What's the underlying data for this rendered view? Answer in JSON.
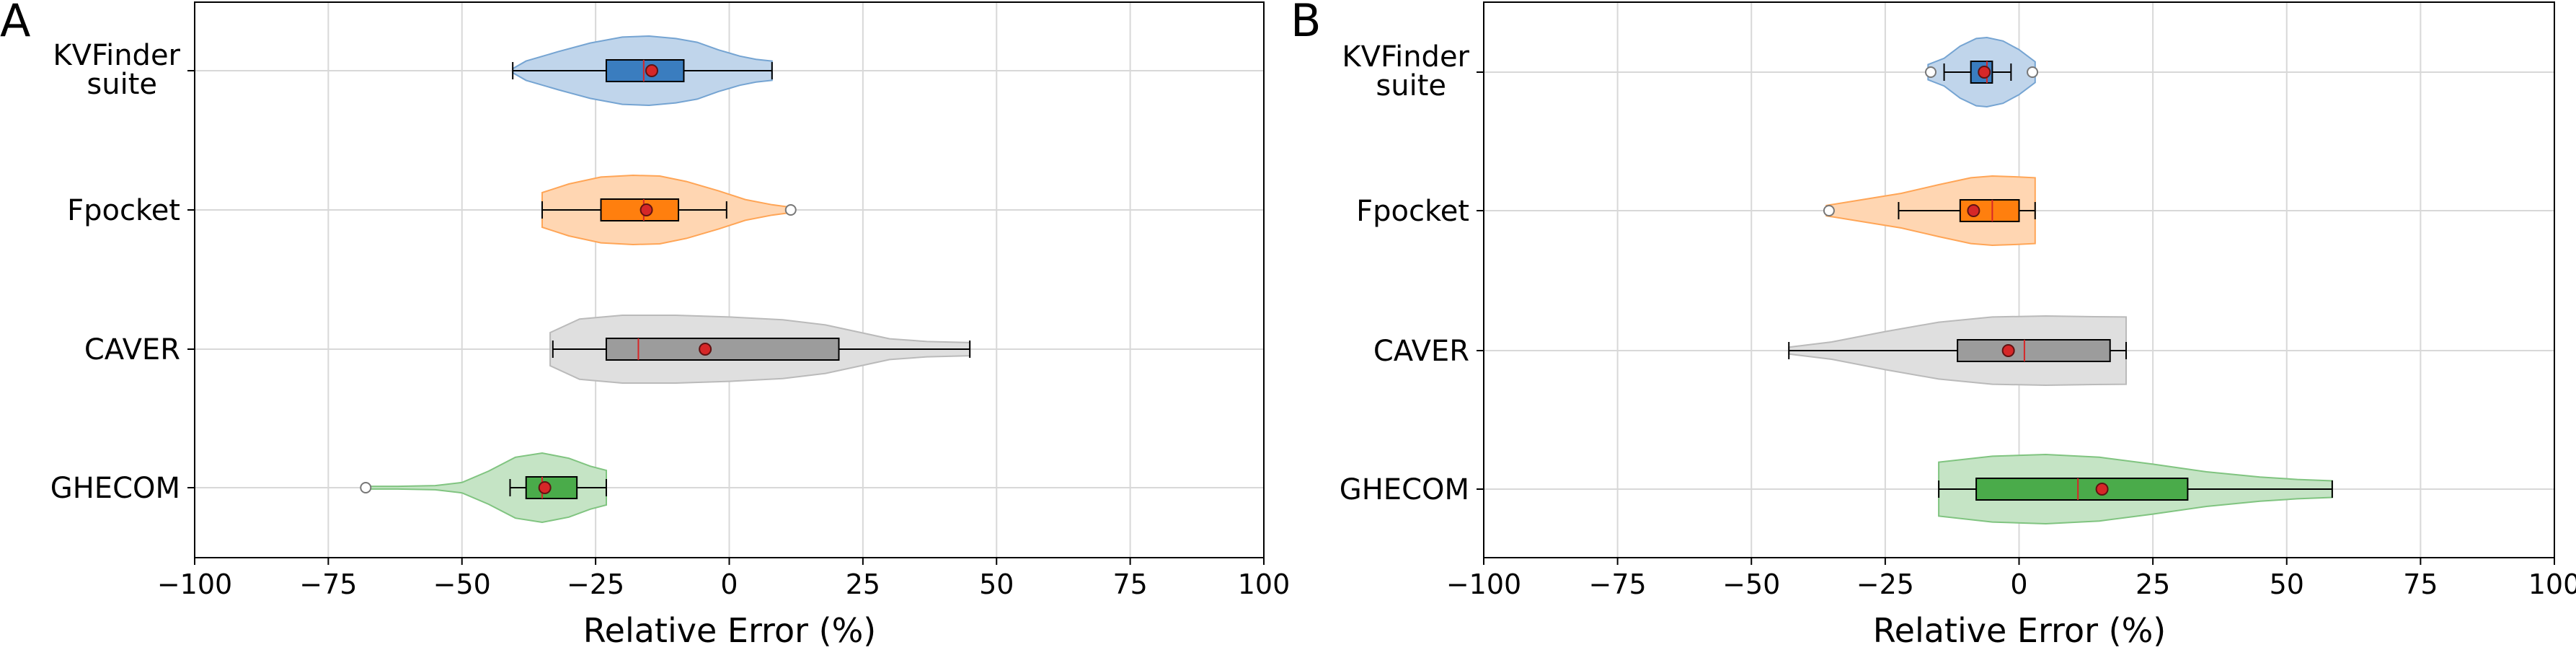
{
  "colors": {
    "KVFinder suite": "#3a7dbf",
    "Fpocket": "#ff7f0e",
    "CAVER": "#9c9c9c",
    "GHECOM": "#4aab4a",
    "mean_marker": "#d62728",
    "median_line": "#d62728",
    "grid": "#d8d8d8"
  },
  "chart_data": [
    {
      "panel_label": "A",
      "type": "violin-box",
      "orientation": "horizontal",
      "xlabel": "Relative Error (%)",
      "xlim": [
        -100,
        100
      ],
      "xticks": [
        -100,
        -75,
        -50,
        -25,
        0,
        25,
        50,
        75,
        100
      ],
      "xtick_labels": [
        "−100",
        "−75",
        "−50",
        "−25",
        "0",
        "25",
        "50",
        "75",
        "100"
      ],
      "grid": true,
      "categories": [
        "KVFinder suite",
        "Fpocket",
        "CAVER",
        "GHECOM"
      ],
      "category_labels": [
        [
          "KVFinder",
          "suite"
        ],
        [
          "Fpocket"
        ],
        [
          "CAVER"
        ],
        [
          "GHECOM"
        ]
      ],
      "series": [
        {
          "name": "KVFinder suite",
          "violin": [
            [
              -40.5,
              0.06
            ],
            [
              -38,
              0.28
            ],
            [
              -32,
              0.55
            ],
            [
              -26,
              0.8
            ],
            [
              -20,
              0.97
            ],
            [
              -15,
              1.0
            ],
            [
              -10,
              0.93
            ],
            [
              -6,
              0.82
            ],
            [
              -2,
              0.6
            ],
            [
              2,
              0.42
            ],
            [
              5,
              0.33
            ],
            [
              8,
              0.28
            ]
          ],
          "whisker_low": -40.5,
          "q1": -23,
          "median": -16,
          "q3": -8.5,
          "whisker_high": 8,
          "mean": -14.5,
          "outliers": []
        },
        {
          "name": "Fpocket",
          "violin": [
            [
              -35,
              0.5
            ],
            [
              -30,
              0.75
            ],
            [
              -24,
              0.95
            ],
            [
              -18,
              1.0
            ],
            [
              -13,
              0.98
            ],
            [
              -8,
              0.82
            ],
            [
              -2,
              0.55
            ],
            [
              3,
              0.3
            ],
            [
              8,
              0.15
            ],
            [
              11.5,
              0.08
            ]
          ],
          "whisker_low": -35,
          "q1": -24,
          "median": -16,
          "q3": -9.5,
          "whisker_high": -0.5,
          "mean": -15.5,
          "outliers": [
            11.5
          ]
        },
        {
          "name": "CAVER",
          "violin": [
            [
              -33.5,
              0.48
            ],
            [
              -28,
              0.87
            ],
            [
              -20,
              0.98
            ],
            [
              -10,
              0.98
            ],
            [
              0,
              0.93
            ],
            [
              10,
              0.85
            ],
            [
              18,
              0.7
            ],
            [
              24,
              0.5
            ],
            [
              30,
              0.3
            ],
            [
              37,
              0.22
            ],
            [
              45,
              0.19
            ]
          ],
          "whisker_low": -33,
          "q1": -23,
          "median": -17,
          "q3": 20.5,
          "whisker_high": 45,
          "mean": -4.5,
          "outliers": []
        },
        {
          "name": "GHECOM",
          "violin": [
            [
              -68.5,
              0.04
            ],
            [
              -62,
              0.04
            ],
            [
              -55,
              0.06
            ],
            [
              -50,
              0.15
            ],
            [
              -45,
              0.48
            ],
            [
              -40,
              0.88
            ],
            [
              -35,
              1.0
            ],
            [
              -30,
              0.85
            ],
            [
              -26,
              0.62
            ],
            [
              -23,
              0.5
            ]
          ],
          "whisker_low": -41,
          "q1": -38,
          "median": -35,
          "q3": -28.5,
          "whisker_high": -23,
          "mean": -34.5,
          "outliers": [
            -68
          ]
        }
      ]
    },
    {
      "panel_label": "B",
      "type": "violin-box",
      "orientation": "horizontal",
      "xlabel": "Relative Error (%)",
      "xlim": [
        -100,
        100
      ],
      "xticks": [
        -100,
        -75,
        -50,
        -25,
        0,
        25,
        50,
        75,
        100
      ],
      "xtick_labels": [
        "−100",
        "−75",
        "−50",
        "−25",
        "0",
        "25",
        "50",
        "75",
        "100"
      ],
      "grid": true,
      "categories": [
        "KVFinder suite",
        "Fpocket",
        "CAVER",
        "GHECOM"
      ],
      "category_labels": [
        [
          "KVFinder",
          "suite"
        ],
        [
          "Fpocket"
        ],
        [
          "CAVER"
        ],
        [
          "GHECOM"
        ]
      ],
      "series": [
        {
          "name": "KVFinder suite",
          "violin": [
            [
              -17,
              0.22
            ],
            [
              -14,
              0.4
            ],
            [
              -11,
              0.75
            ],
            [
              -8,
              0.97
            ],
            [
              -6,
              1.0
            ],
            [
              -3,
              0.9
            ],
            [
              0,
              0.65
            ],
            [
              3,
              0.3
            ]
          ],
          "whisker_low": -14,
          "q1": -9,
          "median": -6,
          "q3": -5,
          "whisker_high": -1.5,
          "mean": -6.5,
          "outliers": [
            -16.5,
            2.5
          ]
        },
        {
          "name": "Fpocket",
          "violin": [
            [
              -36,
              0.15
            ],
            [
              -30,
              0.3
            ],
            [
              -22,
              0.5
            ],
            [
              -15,
              0.75
            ],
            [
              -9,
              0.95
            ],
            [
              -5,
              1.0
            ],
            [
              -1,
              0.98
            ],
            [
              3,
              0.95
            ]
          ],
          "whisker_low": -22.5,
          "q1": -11,
          "median": -5,
          "q3": 0,
          "whisker_high": 3,
          "mean": -8.5,
          "outliers": [
            -35.5
          ]
        },
        {
          "name": "CAVER",
          "violin": [
            [
              -43,
              0.1
            ],
            [
              -35,
              0.25
            ],
            [
              -25,
              0.55
            ],
            [
              -15,
              0.82
            ],
            [
              -5,
              0.97
            ],
            [
              5,
              1.0
            ],
            [
              14,
              0.98
            ],
            [
              20,
              0.97
            ]
          ],
          "whisker_low": -43,
          "q1": -11.5,
          "median": 1,
          "q3": 17,
          "whisker_high": 20,
          "mean": -2,
          "outliers": []
        },
        {
          "name": "GHECOM",
          "violin": [
            [
              -15,
              0.78
            ],
            [
              -5,
              0.95
            ],
            [
              5,
              1.0
            ],
            [
              15,
              0.92
            ],
            [
              25,
              0.72
            ],
            [
              35,
              0.5
            ],
            [
              45,
              0.35
            ],
            [
              52,
              0.28
            ],
            [
              58.5,
              0.24
            ]
          ],
          "whisker_low": -15,
          "q1": -8,
          "median": 11,
          "q3": 31.5,
          "whisker_high": 58.5,
          "mean": 15.5,
          "outliers": []
        }
      ]
    }
  ]
}
